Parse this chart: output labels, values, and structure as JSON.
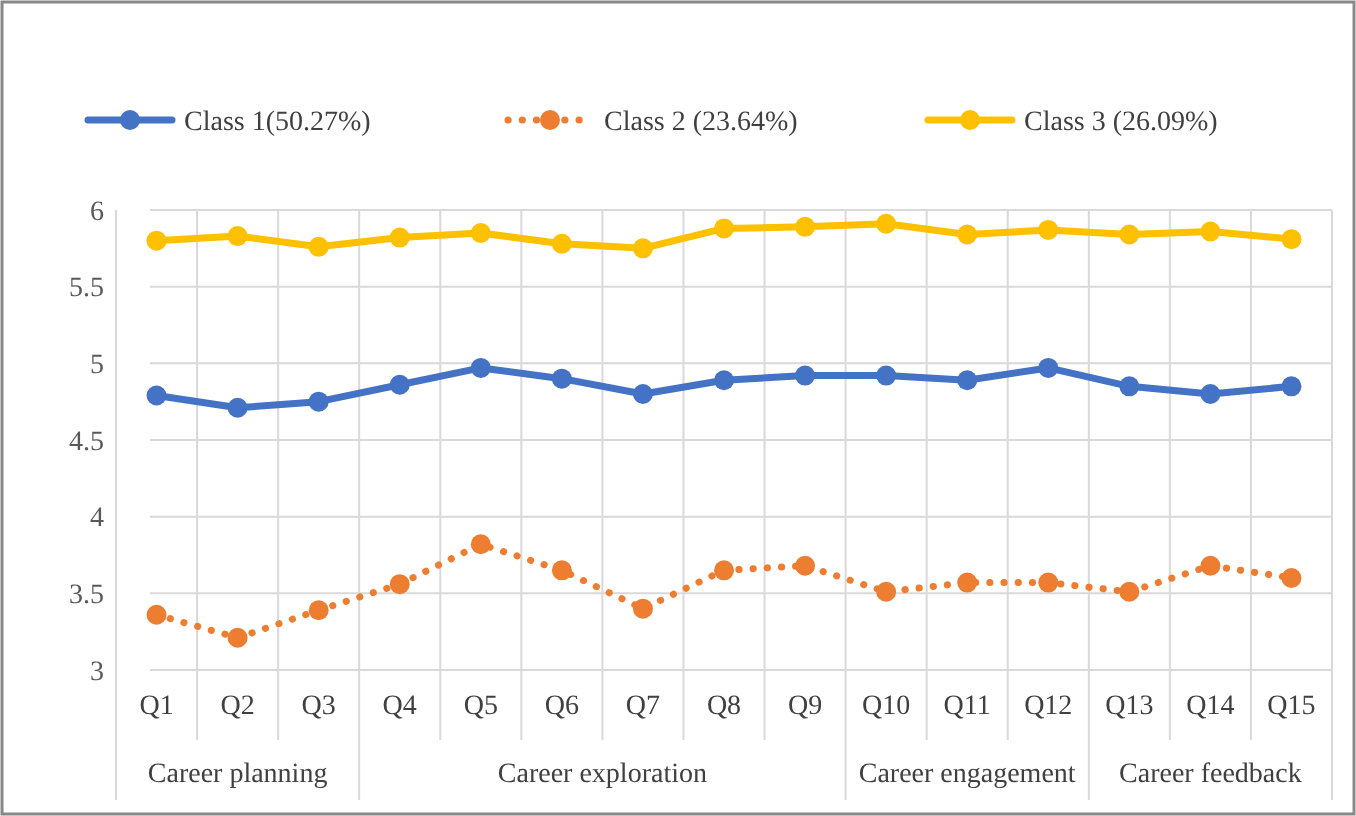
{
  "chart_data": {
    "type": "line",
    "categories": [
      "Q1",
      "Q2",
      "Q3",
      "Q4",
      "Q5",
      "Q6",
      "Q7",
      "Q8",
      "Q9",
      "Q10",
      "Q11",
      "Q12",
      "Q13",
      "Q14",
      "Q15"
    ],
    "series": [
      {
        "name": "Class 1(50.27%)",
        "color": "#4472c4",
        "line_style": "solid",
        "values": [
          4.79,
          4.71,
          4.75,
          4.86,
          4.97,
          4.9,
          4.8,
          4.89,
          4.92,
          4.92,
          4.89,
          4.97,
          4.85,
          4.8,
          4.85
        ]
      },
      {
        "name": "Class 2 (23.64%)",
        "color": "#ed7d31",
        "line_style": "dotted",
        "values": [
          3.36,
          3.21,
          3.39,
          3.56,
          3.82,
          3.65,
          3.4,
          3.65,
          3.68,
          3.51,
          3.57,
          3.57,
          3.51,
          3.68,
          3.6
        ]
      },
      {
        "name": "Class 3 (26.09%)",
        "color": "#ffc000",
        "line_style": "solid",
        "values": [
          5.8,
          5.83,
          5.76,
          5.82,
          5.85,
          5.78,
          5.75,
          5.88,
          5.89,
          5.91,
          5.84,
          5.87,
          5.84,
          5.86,
          5.81
        ]
      }
    ],
    "ylim": [
      3,
      6
    ],
    "yticks": [
      3,
      3.5,
      4,
      4.5,
      5,
      5.5,
      6
    ],
    "grid": true,
    "legend": "top",
    "marker": "circle",
    "annotations": [
      "Career planning",
      "Career exploration",
      "Career engagement",
      "Career feedback"
    ]
  }
}
